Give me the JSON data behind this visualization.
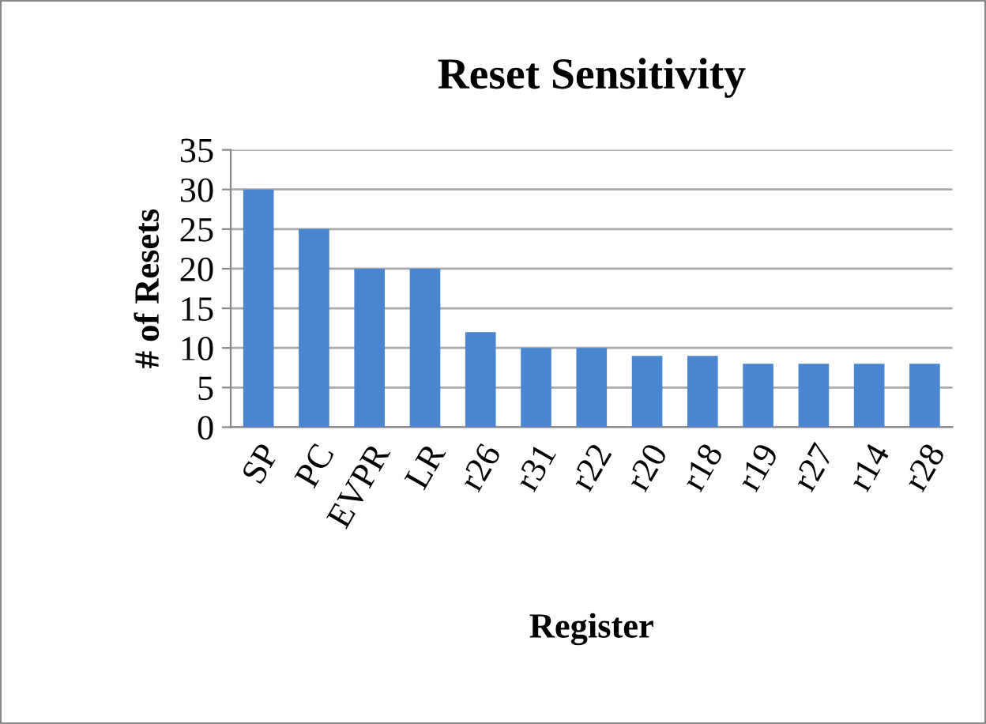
{
  "chart_data": {
    "type": "bar",
    "title": "Reset Sensitivity",
    "xlabel": "Register",
    "ylabel": "# of Resets",
    "categories": [
      "SP",
      "PC",
      "EVPR",
      "LR",
      "r26",
      "r31",
      "r22",
      "r20",
      "r18",
      "r19",
      "r27",
      "r14",
      "r28"
    ],
    "values": [
      30,
      25,
      20,
      20,
      12,
      10,
      10,
      9,
      9,
      8,
      8,
      8,
      8
    ],
    "color": "#4a86d0",
    "ylim": [
      0,
      35
    ],
    "yticks": [
      0,
      5,
      10,
      15,
      20,
      25,
      30,
      35
    ],
    "grid": "y",
    "legend": false
  }
}
